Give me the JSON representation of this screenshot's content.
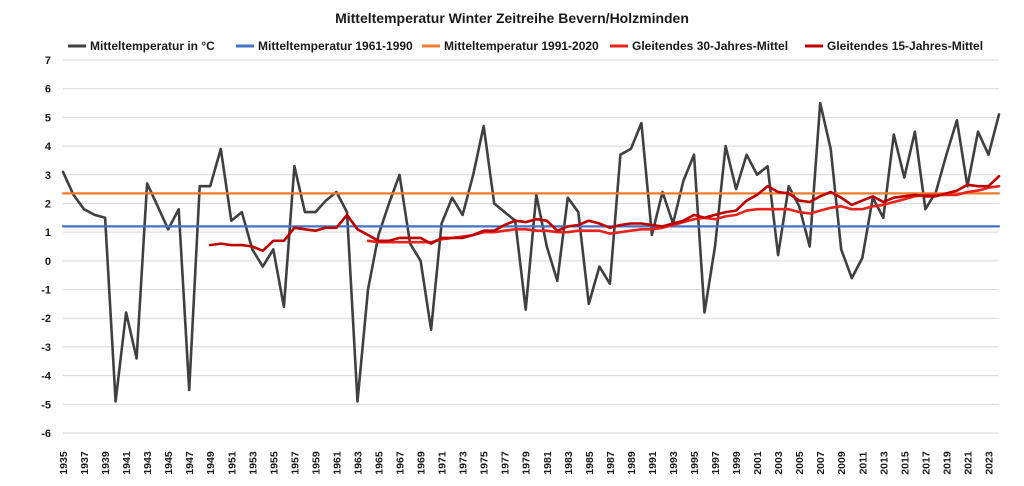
{
  "chart_data": {
    "type": "line",
    "title": "Mitteltemperatur Winter Zeitreihe Bevern/Holzminden",
    "xlabel": "",
    "ylabel": "",
    "ylim": [
      -6,
      7
    ],
    "yticks": [
      -6,
      -5,
      -4,
      -3,
      -2,
      -1,
      0,
      1,
      2,
      3,
      4,
      5,
      6,
      7
    ],
    "xlim": [
      1935,
      2024
    ],
    "xtick_start": 1935,
    "xtick_end": 2023,
    "xtick_step": 2,
    "grid": "horizontal",
    "legend_position": "top",
    "series": [
      {
        "name": "Mitteltemperatur in °C",
        "color": "#404040",
        "x": [
          1935,
          1936,
          1937,
          1938,
          1939,
          1940,
          1941,
          1942,
          1943,
          1944,
          1945,
          1946,
          1947,
          1948,
          1949,
          1950,
          1951,
          1952,
          1953,
          1954,
          1955,
          1956,
          1957,
          1958,
          1959,
          1960,
          1961,
          1962,
          1963,
          1964,
          1965,
          1966,
          1967,
          1968,
          1969,
          1970,
          1971,
          1972,
          1973,
          1974,
          1975,
          1976,
          1977,
          1978,
          1979,
          1980,
          1981,
          1982,
          1983,
          1984,
          1985,
          1986,
          1987,
          1988,
          1989,
          1990,
          1991,
          1992,
          1993,
          1994,
          1995,
          1996,
          1997,
          1998,
          1999,
          2000,
          2001,
          2002,
          2003,
          2004,
          2005,
          2006,
          2007,
          2008,
          2009,
          2010,
          2011,
          2012,
          2013,
          2014,
          2015,
          2016,
          2017,
          2018,
          2019,
          2020,
          2021,
          2022,
          2023,
          2024
        ],
        "y": [
          3.1,
          2.3,
          1.8,
          1.6,
          1.5,
          -4.9,
          -1.8,
          -3.4,
          2.7,
          1.9,
          1.1,
          1.8,
          -4.5,
          2.6,
          2.6,
          3.9,
          1.4,
          1.7,
          0.4,
          -0.2,
          0.4,
          -1.6,
          3.3,
          1.7,
          1.7,
          2.1,
          2.4,
          1.7,
          -4.9,
          -1.0,
          0.9,
          2.0,
          3.0,
          0.6,
          0.0,
          -2.4,
          1.3,
          2.2,
          1.6,
          3.0,
          4.7,
          2.0,
          1.7,
          1.4,
          -1.7,
          2.3,
          0.5,
          -0.7,
          2.2,
          1.7,
          -1.5,
          -0.2,
          -0.8,
          3.7,
          3.9,
          4.8,
          0.9,
          2.4,
          1.3,
          2.8,
          3.7,
          -1.8,
          0.5,
          4.0,
          2.5,
          3.7,
          3.0,
          3.3,
          0.2,
          2.6,
          1.9,
          0.5,
          5.5,
          3.9,
          0.4,
          -0.6,
          0.1,
          2.2,
          1.5,
          4.4,
          2.9,
          4.5,
          1.8,
          2.4,
          3.7,
          4.9,
          2.6,
          4.5,
          3.7,
          5.1
        ]
      },
      {
        "name": "Mitteltemperatur 1961-1990",
        "color": "#4472c4",
        "x": [
          1935,
          2024
        ],
        "y": [
          1.2,
          1.2
        ]
      },
      {
        "name": "Mitteltemperatur 1991-2020",
        "color": "#ed7d31",
        "x": [
          1935,
          2024
        ],
        "y": [
          2.35,
          2.35
        ]
      },
      {
        "name": "Gleitendes 30-Jahres-Mittel",
        "color": "#e8231c",
        "x": [
          1964,
          1965,
          1966,
          1967,
          1968,
          1969,
          1970,
          1971,
          1972,
          1973,
          1974,
          1975,
          1976,
          1977,
          1978,
          1979,
          1980,
          1981,
          1982,
          1983,
          1984,
          1985,
          1986,
          1987,
          1988,
          1989,
          1990,
          1991,
          1992,
          1993,
          1994,
          1995,
          1996,
          1997,
          1998,
          1999,
          2000,
          2001,
          2002,
          2003,
          2004,
          2005,
          2006,
          2007,
          2008,
          2009,
          2010,
          2011,
          2012,
          2013,
          2014,
          2015,
          2016,
          2017,
          2018,
          2019,
          2020,
          2021,
          2022,
          2023,
          2024
        ],
        "y": [
          0.7,
          0.65,
          0.65,
          0.65,
          0.65,
          0.65,
          0.65,
          0.75,
          0.8,
          0.85,
          0.9,
          1.0,
          1.0,
          1.05,
          1.1,
          1.1,
          1.05,
          1.05,
          1.0,
          1.0,
          1.05,
          1.05,
          1.05,
          0.95,
          1.0,
          1.05,
          1.1,
          1.1,
          1.15,
          1.25,
          1.35,
          1.45,
          1.5,
          1.45,
          1.55,
          1.6,
          1.75,
          1.8,
          1.8,
          1.8,
          1.8,
          1.7,
          1.65,
          1.75,
          1.85,
          1.9,
          1.8,
          1.8,
          1.9,
          1.95,
          2.05,
          2.15,
          2.25,
          2.3,
          2.3,
          2.3,
          2.3,
          2.4,
          2.45,
          2.55,
          2.6
        ]
      },
      {
        "name": "Gleitendes 15-Jahres-Mittel",
        "color": "#c00000",
        "x": [
          1949,
          1950,
          1951,
          1952,
          1953,
          1954,
          1955,
          1956,
          1957,
          1958,
          1959,
          1960,
          1961,
          1962,
          1963,
          1964,
          1965,
          1966,
          1967,
          1968,
          1969,
          1970,
          1971,
          1972,
          1973,
          1974,
          1975,
          1976,
          1977,
          1978,
          1979,
          1980,
          1981,
          1982,
          1983,
          1984,
          1985,
          1986,
          1987,
          1988,
          1989,
          1990,
          1991,
          1992,
          1993,
          1994,
          1995,
          1996,
          1997,
          1998,
          1999,
          2000,
          2001,
          2002,
          2003,
          2004,
          2005,
          2006,
          2007,
          2008,
          2009,
          2010,
          2011,
          2012,
          2013,
          2014,
          2015,
          2016,
          2017,
          2018,
          2019,
          2020,
          2021,
          2022,
          2023,
          2024
        ],
        "y": [
          0.55,
          0.6,
          0.55,
          0.55,
          0.5,
          0.35,
          0.7,
          0.7,
          1.15,
          1.1,
          1.05,
          1.15,
          1.15,
          1.6,
          1.1,
          0.9,
          0.7,
          0.7,
          0.8,
          0.8,
          0.8,
          0.6,
          0.8,
          0.8,
          0.8,
          0.9,
          1.05,
          1.05,
          1.25,
          1.4,
          1.35,
          1.45,
          1.4,
          1.05,
          1.2,
          1.25,
          1.4,
          1.3,
          1.15,
          1.25,
          1.3,
          1.3,
          1.25,
          1.2,
          1.3,
          1.4,
          1.6,
          1.5,
          1.6,
          1.7,
          1.75,
          2.1,
          2.3,
          2.6,
          2.4,
          2.35,
          2.1,
          2.05,
          2.25,
          2.4,
          2.2,
          1.95,
          2.1,
          2.25,
          2.05,
          2.2,
          2.25,
          2.3,
          2.25,
          2.25,
          2.35,
          2.45,
          2.65,
          2.6,
          2.6,
          2.95
        ]
      }
    ]
  }
}
